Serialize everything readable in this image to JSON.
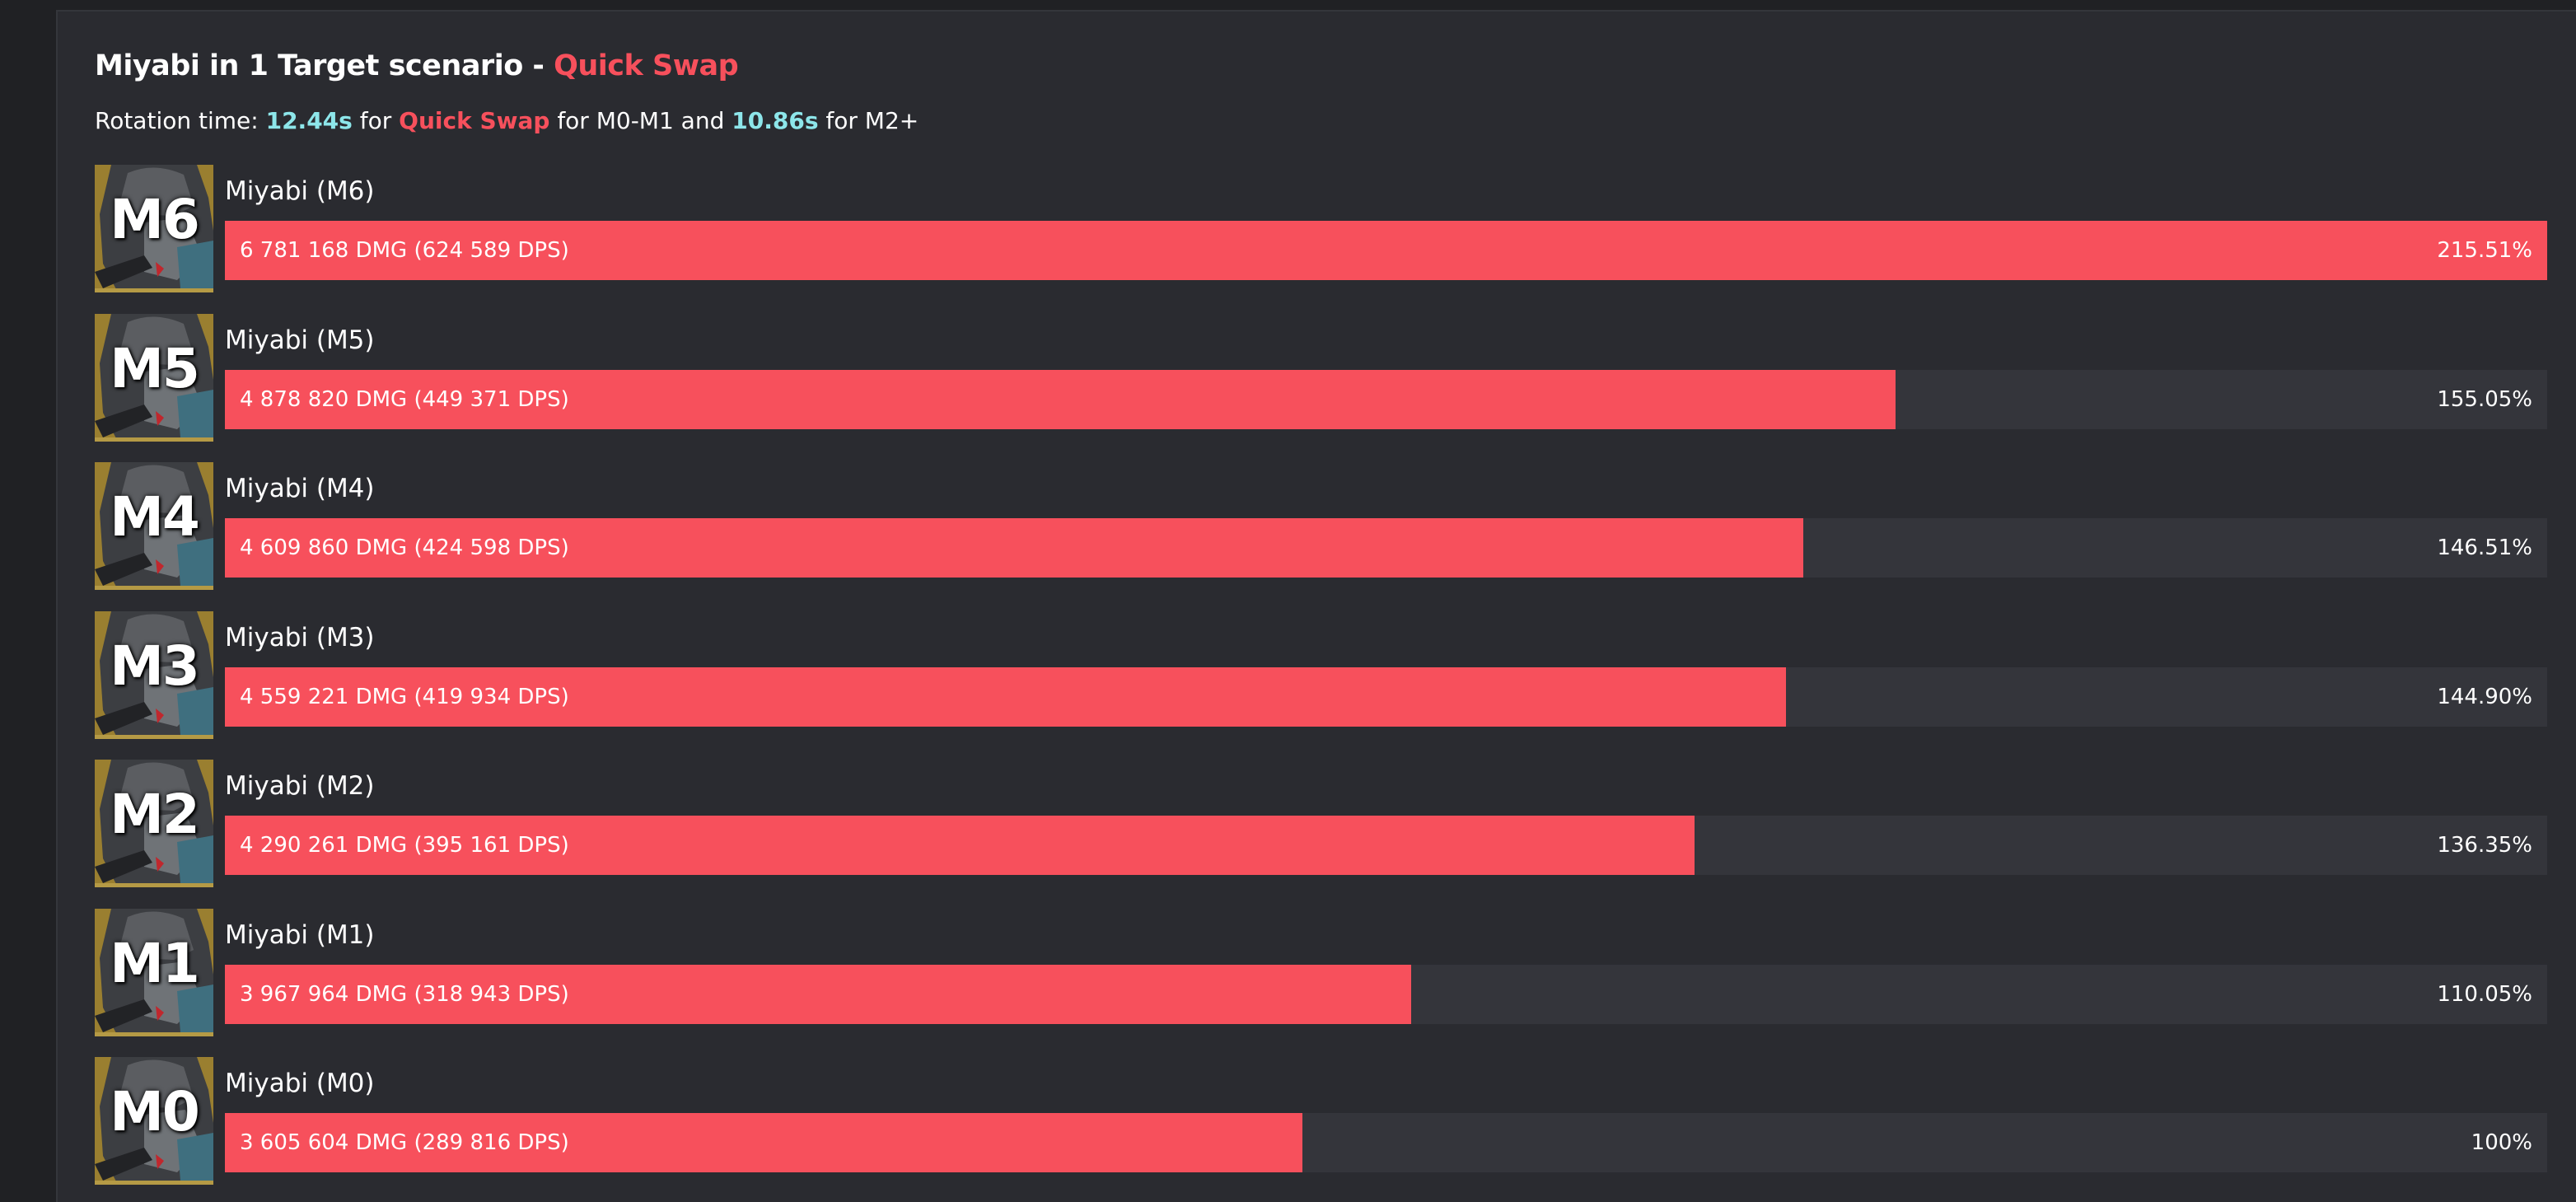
{
  "header": {
    "title_prefix": "Miyabi in 1 Target scenario - ",
    "title_highlight": "Quick Swap",
    "sub_1": "Rotation time: ",
    "sub_time1": "12.44s",
    "sub_2": " for ",
    "sub_mode": "Quick Swap",
    "sub_3": " for M0-M1 and ",
    "sub_time2": "10.86s",
    "sub_4": " for M2+"
  },
  "colors": {
    "bar": "#f7505c",
    "track": "#34353b",
    "accent_cyan": "#8de6ea",
    "background": "#2a2b30"
  },
  "chart_data": {
    "type": "bar",
    "orientation": "horizontal",
    "title": "Miyabi in 1 Target scenario - Quick Swap",
    "rows": [
      {
        "avatar": "M6",
        "name": "Miyabi (M6)",
        "dmg": 6781168,
        "dps": 624589,
        "dmg_label": "6 781 168 DMG (624 589 DPS)",
        "percent": 215.51,
        "percent_label": "215.51%"
      },
      {
        "avatar": "M5",
        "name": "Miyabi (M5)",
        "dmg": 4878820,
        "dps": 449371,
        "dmg_label": "4 878 820 DMG (449 371 DPS)",
        "percent": 155.05,
        "percent_label": "155.05%"
      },
      {
        "avatar": "M4",
        "name": "Miyabi (M4)",
        "dmg": 4609860,
        "dps": 424598,
        "dmg_label": "4 609 860 DMG (424 598 DPS)",
        "percent": 146.51,
        "percent_label": "146.51%"
      },
      {
        "avatar": "M3",
        "name": "Miyabi (M3)",
        "dmg": 4559221,
        "dps": 419934,
        "dmg_label": "4 559 221 DMG (419 934 DPS)",
        "percent": 144.9,
        "percent_label": "144.90%"
      },
      {
        "avatar": "M2",
        "name": "Miyabi (M2)",
        "dmg": 4290261,
        "dps": 395161,
        "dmg_label": "4 290 261 DMG (395 161 DPS)",
        "percent": 136.35,
        "percent_label": "136.35%"
      },
      {
        "avatar": "M1",
        "name": "Miyabi (M1)",
        "dmg": 3967964,
        "dps": 318943,
        "dmg_label": "3 967 964 DMG (318 943 DPS)",
        "percent": 110.05,
        "percent_label": "110.05%"
      },
      {
        "avatar": "M0",
        "name": "Miyabi (M0)",
        "dmg": 3605604,
        "dps": 289816,
        "dmg_label": "3 605 604 DMG (289 816 DPS)",
        "percent": 100,
        "percent_label": "100%"
      }
    ]
  }
}
